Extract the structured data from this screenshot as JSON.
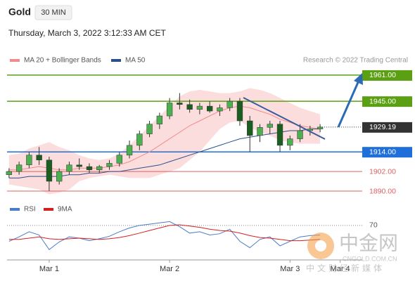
{
  "header": {
    "title": "Gold",
    "timeframe": "30 MIN",
    "date": "Thursday, March 3, 2022 3:12:33 AM CET",
    "source": "Research © 2022 Trading Central"
  },
  "watermark": {
    "logo": "中金网",
    "site": "CNGOLD.COM.CN",
    "slogan": "中文财经新媒体"
  },
  "chart_data": [
    {
      "type": "candlestick",
      "xlim": [
        -0.2,
        35.2
      ],
      "ylim": [
        1884.4,
        1965.7
      ],
      "up_color": "#4caf50",
      "down_color": "#1b5e20",
      "candles": [
        [
          1900,
          1904,
          1898,
          1902
        ],
        [
          1902,
          1908,
          1900,
          1906
        ],
        [
          1906,
          1914,
          1904,
          1912
        ],
        [
          1912,
          1917,
          1906,
          1909
        ],
        [
          1909,
          1911,
          1890,
          1896
        ],
        [
          1896,
          1904,
          1894,
          1902
        ],
        [
          1902,
          1908,
          1900,
          1906
        ],
        [
          1906,
          1910,
          1903,
          1905
        ],
        [
          1905,
          1907,
          1901,
          1903
        ],
        [
          1903,
          1906,
          1901,
          1905
        ],
        [
          1905,
          1909,
          1903,
          1907
        ],
        [
          1907,
          1914,
          1905,
          1912
        ],
        [
          1912,
          1921,
          1910,
          1918
        ],
        [
          1918,
          1927,
          1915,
          1925
        ],
        [
          1925,
          1933,
          1923,
          1931
        ],
        [
          1931,
          1938,
          1928,
          1936
        ],
        [
          1936,
          1947,
          1934,
          1944
        ],
        [
          1944,
          1950,
          1940,
          1943
        ],
        [
          1943,
          1946,
          1938,
          1940
        ],
        [
          1940,
          1944,
          1937,
          1942
        ],
        [
          1942,
          1945,
          1938,
          1939
        ],
        [
          1939,
          1943,
          1936,
          1941
        ],
        [
          1941,
          1947,
          1939,
          1945
        ],
        [
          1945,
          1947,
          1930,
          1933
        ],
        [
          1933,
          1936,
          1914,
          1924
        ],
        [
          1924,
          1931,
          1920,
          1929
        ],
        [
          1929,
          1933,
          1925,
          1931
        ],
        [
          1931,
          1933,
          1914,
          1918
        ],
        [
          1918,
          1924,
          1915,
          1922
        ],
        [
          1922,
          1931,
          1920,
          1927
        ],
        [
          1927,
          1930,
          1924,
          1928
        ],
        [
          1928,
          1931,
          1926,
          1929.19
        ]
      ],
      "series": [
        {
          "name": "MA 20 + Bollinger Bands",
          "color": "#f28b8b",
          "band_color": "#fbd5d5",
          "values": [
            1903,
            1903,
            1904,
            1905,
            1904,
            1903,
            1903,
            1904,
            1904,
            1904,
            1905,
            1906,
            1908,
            1911,
            1914,
            1918,
            1922,
            1926,
            1930,
            1933,
            1936,
            1939,
            1941,
            1942,
            1941,
            1939,
            1937,
            1934,
            1932,
            1930,
            1929,
            1928
          ],
          "upper": [
            1912,
            1913,
            1916,
            1918,
            1920,
            1917,
            1915,
            1912,
            1910,
            1909,
            1910,
            1913,
            1918,
            1924,
            1930,
            1936,
            1942,
            1948,
            1951,
            1952,
            1951,
            1950,
            1950,
            1951,
            1953,
            1952,
            1950,
            1947,
            1944,
            1941,
            1939,
            1937
          ],
          "lower": [
            1894,
            1893,
            1892,
            1891,
            1888,
            1889,
            1891,
            1896,
            1898,
            1899,
            1900,
            1899,
            1898,
            1898,
            1898,
            1900,
            1902,
            1904,
            1909,
            1914,
            1921,
            1928,
            1932,
            1933,
            1929,
            1926,
            1924,
            1921,
            1920,
            1919,
            1919,
            1919
          ]
        },
        {
          "name": "MA 50",
          "color": "#2c4f8c",
          "values": [
            1898,
            1898,
            1899,
            1899,
            1899,
            1899,
            1900,
            1900,
            1901,
            1901,
            1902,
            1902,
            1903,
            1904,
            1905,
            1906,
            1908,
            1910,
            1912,
            1914,
            1916,
            1918,
            1920,
            1922,
            1923,
            1924,
            1925,
            1926,
            1927,
            1927,
            1928,
            1928
          ]
        }
      ],
      "levels": [
        {
          "value": 1961,
          "label": "1961.00",
          "color": "#5aa012",
          "boxed": true
        },
        {
          "value": 1945,
          "label": "1945.00",
          "color": "#5aa012",
          "boxed": true
        },
        {
          "value": 1914,
          "label": "1914.00",
          "color": "#1e6fd9",
          "boxed": true
        },
        {
          "value": 1902,
          "label": "1902.00",
          "color": "#e06060",
          "boxed": false
        },
        {
          "value": 1890,
          "label": "1890.00",
          "color": "#e06060",
          "boxed": false
        }
      ],
      "current_price": 1929.19,
      "current_color": "#333333"
    },
    {
      "type": "line",
      "xlim": [
        -0.2,
        35.2
      ],
      "ylim": [
        18,
        82
      ],
      "yticks": [
        70
      ],
      "xticks": [
        {
          "value": 4,
          "label": "Mar 1"
        },
        {
          "value": 16,
          "label": "Mar 2"
        },
        {
          "value": 28,
          "label": "Mar 3"
        },
        {
          "value": 33,
          "label": "Mar 4"
        }
      ],
      "series": [
        {
          "name": "RSI",
          "color": "#4a7cc9",
          "values": [
            45,
            52,
            60,
            55,
            32,
            44,
            52,
            50,
            46,
            49,
            53,
            60,
            66,
            70,
            72,
            74,
            76,
            68,
            58,
            60,
            55,
            57,
            64,
            45,
            35,
            48,
            52,
            38,
            45,
            52,
            54,
            55
          ]
        },
        {
          "name": "9MA",
          "color": "#d62020",
          "values": [
            48,
            48,
            50,
            52,
            49,
            48,
            49,
            50,
            49,
            48,
            49,
            51,
            54,
            58,
            62,
            66,
            70,
            71,
            69,
            67,
            64,
            62,
            61,
            58,
            54,
            51,
            50,
            48,
            46,
            46,
            47,
            48
          ]
        }
      ]
    }
  ]
}
